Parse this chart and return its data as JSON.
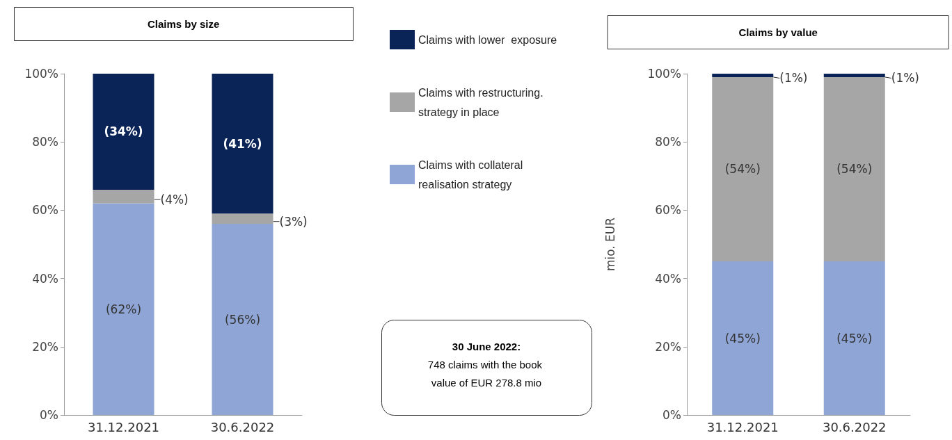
{
  "chart_data": [
    {
      "type": "bar",
      "title": "Claims by size",
      "categories": [
        "31.12.2021",
        "30.6.2022"
      ],
      "stacked": true,
      "legend": "right",
      "series": [
        {
          "name": "Claims with collateral realisation strategy",
          "color": "#8ea5d6",
          "values": [
            62,
            56
          ],
          "value_labels": [
            "(62%)",
            "(56%)"
          ]
        },
        {
          "name": "Claims with restructuring. strategy in place",
          "color": "#a6a6a6",
          "values": [
            4,
            3
          ],
          "value_labels": [
            "(4%)",
            "(3%)"
          ]
        },
        {
          "name": "Claims with lower  exposure",
          "color": "#0a2458",
          "values": [
            34,
            41
          ],
          "value_labels": [
            "(34%)",
            "(41%)"
          ]
        }
      ],
      "ylim": [
        0,
        100
      ],
      "yticks": [
        {
          "value": 0,
          "label": "0%"
        },
        {
          "value": 20,
          "label": "20%"
        },
        {
          "value": 40,
          "label": "40%"
        },
        {
          "value": 60,
          "label": "60%"
        },
        {
          "value": 80,
          "label": "80%"
        },
        {
          "value": 100,
          "label": "100%"
        }
      ],
      "annotations": [
        "30 June 2022:",
        "748 claims with the book value of EUR 278.8 mio"
      ]
    },
    {
      "type": "bar",
      "title": "Claims by value",
      "ylabel": "mio. EUR",
      "categories": [
        "31.12.2021",
        "30.6.2022"
      ],
      "stacked": true,
      "legend": false,
      "series": [
        {
          "color": "#8ea5d6",
          "values": [
            45,
            45
          ],
          "value_labels": [
            "(45%)",
            "(45%)"
          ]
        },
        {
          "color": "#a6a6a6",
          "values": [
            54,
            54
          ],
          "value_labels": [
            "(54%)",
            "(54%)"
          ]
        },
        {
          "color": "#0a2458",
          "values": [
            1,
            1
          ],
          "value_labels": [
            "(1%)",
            "(1%)"
          ]
        }
      ],
      "ylim": [
        0,
        100
      ],
      "yticks": [
        {
          "value": 0,
          "label": "0%"
        },
        {
          "value": 20,
          "label": "20%"
        },
        {
          "value": 40,
          "label": "40%"
        },
        {
          "value": 60,
          "label": "60%"
        },
        {
          "value": 80,
          "label": "80%"
        },
        {
          "value": 100,
          "label": "100%"
        }
      ]
    }
  ]
}
